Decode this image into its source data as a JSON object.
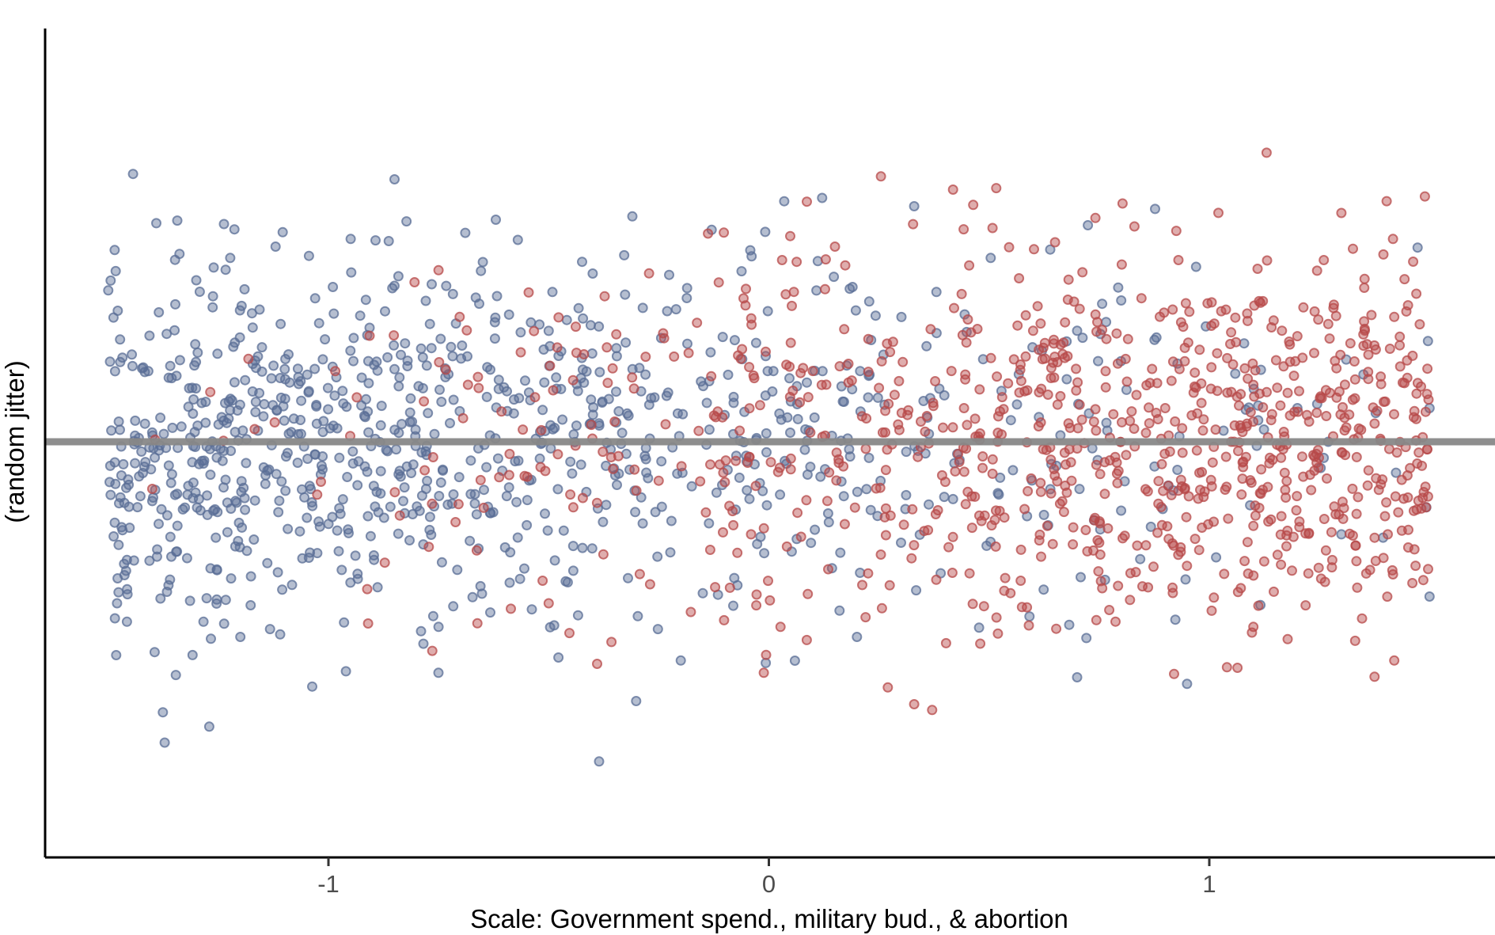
{
  "chart_data": {
    "type": "scatter",
    "title": "",
    "xlabel": "Scale: Government spend., military bud., & abortion",
    "ylabel": "(random jitter)",
    "xlim": [
      -1.65,
      1.65
    ],
    "ylim": [
      -1.0,
      1.0
    ],
    "x_ticks": [
      {
        "value": -1,
        "label": "-1"
      },
      {
        "value": 0,
        "label": "0"
      },
      {
        "value": 1,
        "label": "1"
      }
    ],
    "reference_line": {
      "y": 0,
      "color": "#888888"
    },
    "grid": false,
    "legend": "none",
    "point_alpha": 0.45,
    "series": [
      {
        "name": "blue group",
        "color": "#5a6e96",
        "x_range": [
          -1.5,
          1.5
        ],
        "n_points": 1000,
        "points": [
          [
            -0.85,
            0.78
          ],
          [
            -0.99,
            0.46
          ],
          [
            -1.12,
            0.58
          ],
          [
            -1.5,
            0.45
          ],
          [
            -1.48,
            -0.48
          ],
          [
            -1.2,
            -0.58
          ],
          [
            -0.62,
            0.66
          ],
          [
            -0.31,
            0.67
          ],
          [
            -0.57,
            0.6
          ],
          [
            -0.75,
            -0.55
          ],
          [
            -0.2,
            -0.65
          ],
          [
            -0.13,
            0.63
          ],
          [
            -0.15,
            -0.45
          ],
          [
            0.33,
            0.7
          ],
          [
            0.19,
            0.46
          ],
          [
            0.3,
            -0.3
          ],
          [
            0.7,
            -0.7
          ],
          [
            0.8,
            0.42
          ],
          [
            0.97,
            0.52
          ],
          [
            1.2,
            0.1
          ],
          [
            1.35,
            0.2
          ],
          [
            1.5,
            -0.46
          ],
          [
            1.5,
            0.1
          ],
          [
            -1.47,
            -0.1
          ],
          [
            -0.98,
            0.04
          ],
          [
            -0.52,
            -0.05
          ],
          [
            -0.29,
            0.15
          ],
          [
            0.05,
            0.12
          ],
          [
            0.31,
            -0.2
          ],
          [
            0.62,
            0.27
          ],
          [
            0.88,
            0.31
          ],
          [
            1.27,
            0.0
          ],
          [
            -1.3,
            0.48
          ],
          [
            -0.4,
            0.5
          ],
          [
            0.2,
            -0.58
          ],
          [
            0.7,
            0.33
          ]
        ]
      },
      {
        "name": "red group",
        "color": "#b74a4a",
        "x_range": [
          -1.45,
          1.5
        ],
        "n_points": 940,
        "points": [
          [
            1.3,
            0.68
          ],
          [
            1.26,
            0.54
          ],
          [
            0.83,
            0.64
          ],
          [
            0.93,
            0.54
          ],
          [
            0.33,
            -0.78
          ],
          [
            0.27,
            -0.73
          ],
          [
            0.52,
            -0.57
          ],
          [
            0.48,
            -0.6
          ],
          [
            0.92,
            -0.69
          ],
          [
            1.04,
            -0.67
          ],
          [
            1.42,
            -0.65
          ],
          [
            -0.39,
            -0.66
          ],
          [
            -0.5,
            -0.48
          ],
          [
            -0.75,
            0.51
          ],
          [
            0.15,
            0.58
          ],
          [
            0.03,
            0.54
          ],
          [
            0.38,
            -0.41
          ],
          [
            -0.91,
            -0.54
          ],
          [
            0.82,
            -0.47
          ],
          [
            1.1,
            -0.55
          ],
          [
            1.27,
            0.35
          ],
          [
            1.47,
            0.44
          ],
          [
            -0.42,
            0.26
          ],
          [
            0.6,
            0.33
          ],
          [
            0.75,
            -0.3
          ],
          [
            1.1,
            -0.25
          ],
          [
            0.05,
            -0.05
          ],
          [
            0.45,
            0.05
          ],
          [
            0.9,
            0.1
          ],
          [
            1.45,
            -0.1
          ],
          [
            -0.35,
            0.06
          ],
          [
            -0.1,
            -0.12
          ],
          [
            0.25,
            0.16
          ],
          [
            0.7,
            -0.02
          ],
          [
            1.05,
            0.0
          ],
          [
            -1.4,
            -0.14
          ]
        ]
      }
    ]
  }
}
